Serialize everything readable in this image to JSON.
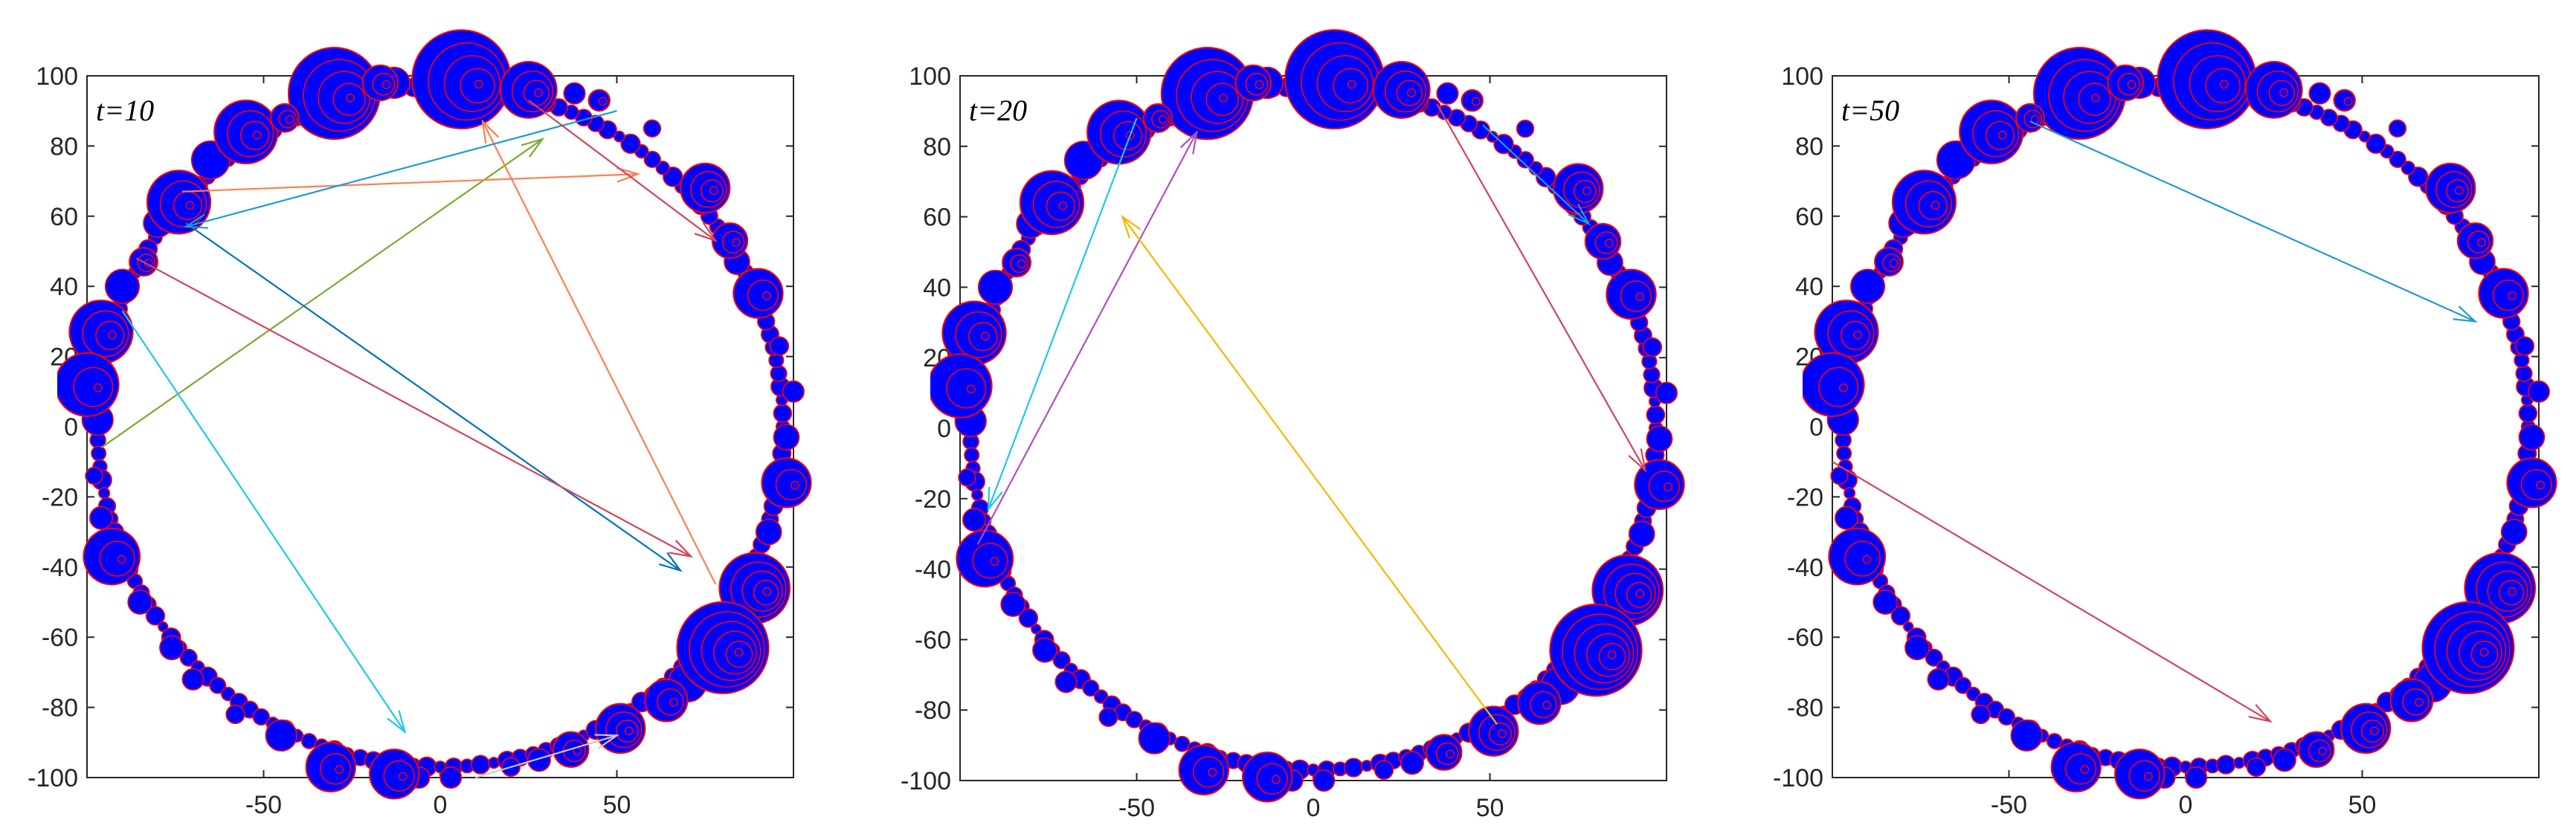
{
  "chart_data": [
    {
      "type": "scatter",
      "title": "t=10",
      "xlim": [
        -100,
        100
      ],
      "ylim": [
        -100,
        100
      ],
      "xticks": [
        -50,
        0,
        50
      ],
      "xtick_labels": [
        "-50",
        "0",
        "50"
      ],
      "yticks": [
        -100,
        -80,
        -60,
        -40,
        -20,
        0,
        20,
        40,
        60,
        80,
        100
      ],
      "ytick_labels": [
        "-100",
        "-80",
        "-60",
        "-40",
        "-20",
        "0",
        "20",
        "40",
        "60",
        "80",
        "100"
      ],
      "arrows": [
        {
          "from": [
            -96,
            -6
          ],
          "to": [
            29,
            82
          ],
          "color": "#77ac30"
        },
        {
          "from": [
            -73,
            67
          ],
          "to": [
            56,
            72
          ],
          "color": "#ff7f50"
        },
        {
          "from": [
            -72,
            58
          ],
          "to": [
            68,
            -41
          ],
          "color": "#0072bd"
        },
        {
          "from": [
            -86,
            48
          ],
          "to": [
            71,
            -37
          ],
          "color": "#d2445c"
        },
        {
          "from": [
            -90,
            33
          ],
          "to": [
            -10,
            -87
          ],
          "color": "#1ec8e6"
        },
        {
          "from": [
            78,
            -45
          ],
          "to": [
            12,
            87
          ],
          "color": "#ff7f50"
        },
        {
          "from": [
            50,
            90
          ],
          "to": [
            -72,
            57
          ],
          "color": "#1f9bd1"
        },
        {
          "from": [
            25,
            93
          ],
          "to": [
            78,
            53
          ],
          "color": "#d2445c"
        },
        {
          "from": [
            10,
            -100
          ],
          "to": [
            50,
            -88
          ],
          "color": "#c9c9c9"
        }
      ]
    },
    {
      "type": "scatter",
      "title": "t=20",
      "xlim": [
        -100,
        100
      ],
      "ylim": [
        -100,
        100
      ],
      "xticks": [
        -50,
        0,
        50
      ],
      "xtick_labels": [
        "-50",
        "0",
        "50"
      ],
      "yticks": [
        -100,
        -80,
        -60,
        -40,
        -20,
        0,
        20,
        40,
        60,
        80,
        100
      ],
      "ytick_labels": [
        "-100",
        "-80",
        "-60",
        "-40",
        "-20",
        "0",
        "20",
        "40",
        "60",
        "80",
        "100"
      ],
      "arrows": [
        {
          "from": [
            -95,
            -33
          ],
          "to": [
            -33,
            84
          ],
          "color": "#b04fc0"
        },
        {
          "from": [
            -50,
            88
          ],
          "to": [
            -92,
            -23
          ],
          "color": "#1ec8e6"
        },
        {
          "from": [
            52,
            -84
          ],
          "to": [
            -54,
            60
          ],
          "color": "#f5b800"
        },
        {
          "from": [
            35,
            92
          ],
          "to": [
            94,
            -12
          ],
          "color": "#d2445c"
        },
        {
          "from": [
            48,
            86
          ],
          "to": [
            78,
            58
          ],
          "color": "#1f9bd1"
        }
      ]
    },
    {
      "type": "scatter",
      "title": "t=50",
      "xlim": [
        -100,
        100
      ],
      "ylim": [
        -100,
        100
      ],
      "xticks": [
        -50,
        0,
        50
      ],
      "xtick_labels": [
        "-50",
        "0",
        "50"
      ],
      "yticks": [
        -100,
        -80,
        -60,
        -40,
        -20,
        0,
        20,
        40,
        60,
        80,
        100
      ],
      "ytick_labels": [
        "-100",
        "-80",
        "-60",
        "-40",
        "-20",
        "0",
        "20",
        "40",
        "60",
        "80",
        "100"
      ],
      "arrows": [
        {
          "from": [
            -44,
            87
          ],
          "to": [
            82,
            30
          ],
          "color": "#1f9bd1"
        },
        {
          "from": [
            -100,
            -10
          ],
          "to": [
            24,
            -84
          ],
          "color": "#d2445c"
        }
      ]
    }
  ],
  "node_style": {
    "fill": "#0000ff",
    "stroke": "#ff0000"
  }
}
